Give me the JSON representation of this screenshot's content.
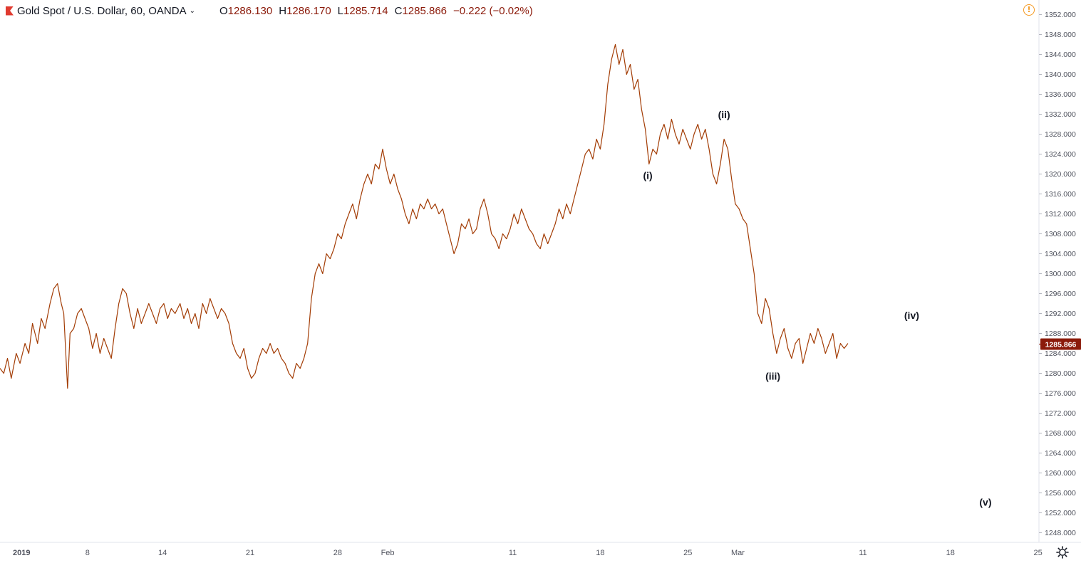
{
  "header": {
    "symbol": "Gold Spot / U.S. Dollar, 60, OANDA",
    "open_label": "O",
    "open": "1286.130",
    "high_label": "H",
    "high": "1286.170",
    "low_label": "L",
    "low": "1285.714",
    "close_label": "C",
    "close": "1285.866",
    "change": "−0.222 (−0.02%)",
    "warning_icon": "alert-circle-icon",
    "settings_icon": "gear-icon"
  },
  "colors": {
    "line": "#a33d06",
    "price_badge": "#8b1a0a",
    "axis_text": "#50535e",
    "label_text": "#131722"
  },
  "chart_data": {
    "type": "line",
    "title": "Gold Spot / U.S. Dollar, 60, OANDA",
    "xlabel": "",
    "ylabel": "",
    "ylim": [
      1246,
      1354
    ],
    "y_ticks": [
      "1352.000",
      "1348.000",
      "1344.000",
      "1340.000",
      "1336.000",
      "1332.000",
      "1328.000",
      "1324.000",
      "1320.000",
      "1316.000",
      "1312.000",
      "1308.000",
      "1304.000",
      "1300.000",
      "1296.000",
      "1292.000",
      "1288.000",
      "1284.000",
      "1280.000",
      "1276.000",
      "1272.000",
      "1268.000",
      "1264.000",
      "1260.000",
      "1256.000",
      "1252.000",
      "1248.000"
    ],
    "x_ticks": [
      {
        "label": "2019",
        "day": 0
      },
      {
        "label": "8",
        "day": 7
      },
      {
        "label": "14",
        "day": 13
      },
      {
        "label": "21",
        "day": 20
      },
      {
        "label": "28",
        "day": 27
      },
      {
        "label": "Feb",
        "day": 31
      },
      {
        "label": "11",
        "day": 41
      },
      {
        "label": "18",
        "day": 48
      },
      {
        "label": "25",
        "day": 55
      },
      {
        "label": "Mar",
        "day": 59
      },
      {
        "label": "11",
        "day": 69
      },
      {
        "label": "18",
        "day": 76
      },
      {
        "label": "25",
        "day": 83
      }
    ],
    "last_price": "1285.866",
    "series": [
      {
        "name": "Gold Spot / U.S. Dollar",
        "points": [
          [
            0,
            1281
          ],
          [
            0.3,
            1280
          ],
          [
            0.6,
            1283
          ],
          [
            0.9,
            1279
          ],
          [
            1.3,
            1284
          ],
          [
            1.6,
            1282
          ],
          [
            2,
            1286
          ],
          [
            2.3,
            1284
          ],
          [
            2.6,
            1290
          ],
          [
            3,
            1286
          ],
          [
            3.3,
            1291
          ],
          [
            3.6,
            1289
          ],
          [
            4,
            1294
          ],
          [
            4.3,
            1297
          ],
          [
            4.6,
            1298
          ],
          [
            4.9,
            1294
          ],
          [
            5.1,
            1292
          ],
          [
            5.4,
            1277
          ],
          [
            5.6,
            1288
          ],
          [
            5.9,
            1289
          ],
          [
            6.2,
            1292
          ],
          [
            6.5,
            1293
          ],
          [
            6.8,
            1291
          ],
          [
            7.1,
            1289
          ],
          [
            7.4,
            1285
          ],
          [
            7.7,
            1288
          ],
          [
            8,
            1284
          ],
          [
            8.3,
            1287
          ],
          [
            8.6,
            1285
          ],
          [
            8.9,
            1283
          ],
          [
            9.2,
            1289
          ],
          [
            9.5,
            1294
          ],
          [
            9.8,
            1297
          ],
          [
            10.1,
            1296
          ],
          [
            10.4,
            1292
          ],
          [
            10.7,
            1289
          ],
          [
            11,
            1293
          ],
          [
            11.3,
            1290
          ],
          [
            11.6,
            1292
          ],
          [
            11.9,
            1294
          ],
          [
            12.2,
            1292
          ],
          [
            12.5,
            1290
          ],
          [
            12.8,
            1293
          ],
          [
            13.1,
            1294
          ],
          [
            13.4,
            1291
          ],
          [
            13.7,
            1293
          ],
          [
            14,
            1292
          ],
          [
            14.4,
            1294
          ],
          [
            14.7,
            1291
          ],
          [
            15,
            1293
          ],
          [
            15.3,
            1290
          ],
          [
            15.6,
            1292
          ],
          [
            15.9,
            1289
          ],
          [
            16.2,
            1294
          ],
          [
            16.5,
            1292
          ],
          [
            16.8,
            1295
          ],
          [
            17.1,
            1293
          ],
          [
            17.4,
            1291
          ],
          [
            17.7,
            1293
          ],
          [
            18,
            1292
          ],
          [
            18.3,
            1290
          ],
          [
            18.6,
            1286
          ],
          [
            18.9,
            1284
          ],
          [
            19.2,
            1283
          ],
          [
            19.5,
            1285
          ],
          [
            19.8,
            1281
          ],
          [
            20.1,
            1279
          ],
          [
            20.4,
            1280
          ],
          [
            20.7,
            1283
          ],
          [
            21,
            1285
          ],
          [
            21.3,
            1284
          ],
          [
            21.6,
            1286
          ],
          [
            21.9,
            1284
          ],
          [
            22.2,
            1285
          ],
          [
            22.5,
            1283
          ],
          [
            22.8,
            1282
          ],
          [
            23.1,
            1280
          ],
          [
            23.4,
            1279
          ],
          [
            23.7,
            1282
          ],
          [
            24,
            1281
          ],
          [
            24.3,
            1283
          ],
          [
            24.6,
            1286
          ],
          [
            24.9,
            1295
          ],
          [
            25.2,
            1300
          ],
          [
            25.5,
            1302
          ],
          [
            25.8,
            1300
          ],
          [
            26.1,
            1304
          ],
          [
            26.4,
            1303
          ],
          [
            26.7,
            1305
          ],
          [
            27,
            1308
          ],
          [
            27.3,
            1307
          ],
          [
            27.6,
            1310
          ],
          [
            27.9,
            1312
          ],
          [
            28.2,
            1314
          ],
          [
            28.5,
            1311
          ],
          [
            28.8,
            1315
          ],
          [
            29.1,
            1318
          ],
          [
            29.4,
            1320
          ],
          [
            29.7,
            1318
          ],
          [
            30,
            1322
          ],
          [
            30.3,
            1321
          ],
          [
            30.6,
            1325
          ],
          [
            30.9,
            1321
          ],
          [
            31.2,
            1318
          ],
          [
            31.5,
            1320
          ],
          [
            31.8,
            1317
          ],
          [
            32.1,
            1315
          ],
          [
            32.4,
            1312
          ],
          [
            32.7,
            1310
          ],
          [
            33,
            1313
          ],
          [
            33.3,
            1311
          ],
          [
            33.6,
            1314
          ],
          [
            33.9,
            1313
          ],
          [
            34.2,
            1315
          ],
          [
            34.5,
            1313
          ],
          [
            34.8,
            1314
          ],
          [
            35.1,
            1312
          ],
          [
            35.4,
            1313
          ],
          [
            35.7,
            1310
          ],
          [
            36,
            1307
          ],
          [
            36.3,
            1304
          ],
          [
            36.6,
            1306
          ],
          [
            36.9,
            1310
          ],
          [
            37.2,
            1309
          ],
          [
            37.5,
            1311
          ],
          [
            37.8,
            1308
          ],
          [
            38.1,
            1309
          ],
          [
            38.4,
            1313
          ],
          [
            38.7,
            1315
          ],
          [
            39,
            1312
          ],
          [
            39.3,
            1308
          ],
          [
            39.6,
            1307
          ],
          [
            39.9,
            1305
          ],
          [
            40.2,
            1308
          ],
          [
            40.5,
            1307
          ],
          [
            40.8,
            1309
          ],
          [
            41.1,
            1312
          ],
          [
            41.4,
            1310
          ],
          [
            41.7,
            1313
          ],
          [
            42,
            1311
          ],
          [
            42.3,
            1309
          ],
          [
            42.6,
            1308
          ],
          [
            42.9,
            1306
          ],
          [
            43.2,
            1305
          ],
          [
            43.5,
            1308
          ],
          [
            43.8,
            1306
          ],
          [
            44.1,
            1308
          ],
          [
            44.4,
            1310
          ],
          [
            44.7,
            1313
          ],
          [
            45,
            1311
          ],
          [
            45.3,
            1314
          ],
          [
            45.6,
            1312
          ],
          [
            45.9,
            1315
          ],
          [
            46.2,
            1318
          ],
          [
            46.5,
            1321
          ],
          [
            46.8,
            1324
          ],
          [
            47.1,
            1325
          ],
          [
            47.4,
            1323
          ],
          [
            47.7,
            1327
          ],
          [
            48,
            1325
          ],
          [
            48.3,
            1330
          ],
          [
            48.6,
            1338
          ],
          [
            48.9,
            1343
          ],
          [
            49.2,
            1346
          ],
          [
            49.5,
            1342
          ],
          [
            49.8,
            1345
          ],
          [
            50.1,
            1340
          ],
          [
            50.4,
            1342
          ],
          [
            50.7,
            1337
          ],
          [
            51,
            1339
          ],
          [
            51.3,
            1333
          ],
          [
            51.6,
            1329
          ],
          [
            51.9,
            1322
          ],
          [
            52.2,
            1325
          ],
          [
            52.5,
            1324
          ],
          [
            52.8,
            1328
          ],
          [
            53.1,
            1330
          ],
          [
            53.4,
            1327
          ],
          [
            53.7,
            1331
          ],
          [
            54,
            1328
          ],
          [
            54.3,
            1326
          ],
          [
            54.6,
            1329
          ],
          [
            54.9,
            1327
          ],
          [
            55.2,
            1325
          ],
          [
            55.5,
            1328
          ],
          [
            55.8,
            1330
          ],
          [
            56.1,
            1327
          ],
          [
            56.4,
            1329
          ],
          [
            56.7,
            1325
          ],
          [
            57,
            1320
          ],
          [
            57.3,
            1318
          ],
          [
            57.6,
            1322
          ],
          [
            57.9,
            1327
          ],
          [
            58.2,
            1325
          ],
          [
            58.5,
            1319
          ],
          [
            58.8,
            1314
          ],
          [
            59.1,
            1313
          ],
          [
            59.4,
            1311
          ],
          [
            59.7,
            1310
          ],
          [
            60,
            1305
          ],
          [
            60.3,
            1300
          ],
          [
            60.6,
            1292
          ],
          [
            60.9,
            1290
          ],
          [
            61.2,
            1295
          ],
          [
            61.5,
            1293
          ],
          [
            61.8,
            1288
          ],
          [
            62.1,
            1284
          ],
          [
            62.4,
            1287
          ],
          [
            62.7,
            1289
          ],
          [
            63,
            1285
          ],
          [
            63.3,
            1283
          ],
          [
            63.6,
            1286
          ],
          [
            63.9,
            1287
          ],
          [
            64.2,
            1282
          ],
          [
            64.5,
            1285
          ],
          [
            64.8,
            1288
          ],
          [
            65.1,
            1286
          ],
          [
            65.4,
            1289
          ],
          [
            65.7,
            1287
          ],
          [
            66,
            1284
          ],
          [
            66.3,
            1286
          ],
          [
            66.6,
            1288
          ],
          [
            66.9,
            1283
          ],
          [
            67.2,
            1286
          ],
          [
            67.5,
            1285
          ],
          [
            67.8,
            1286
          ]
        ]
      }
    ],
    "annotations": [
      {
        "text": "(i)",
        "day": 51.8,
        "price": 1319
      },
      {
        "text": "(ii)",
        "day": 57.9,
        "price": 1331.2
      },
      {
        "text": "(iii)",
        "day": 61.8,
        "price": 1278.7
      },
      {
        "text": "(iv)",
        "day": 72.9,
        "price": 1290.9
      },
      {
        "text": "(v)",
        "day": 78.8,
        "price": 1253.4
      }
    ]
  }
}
